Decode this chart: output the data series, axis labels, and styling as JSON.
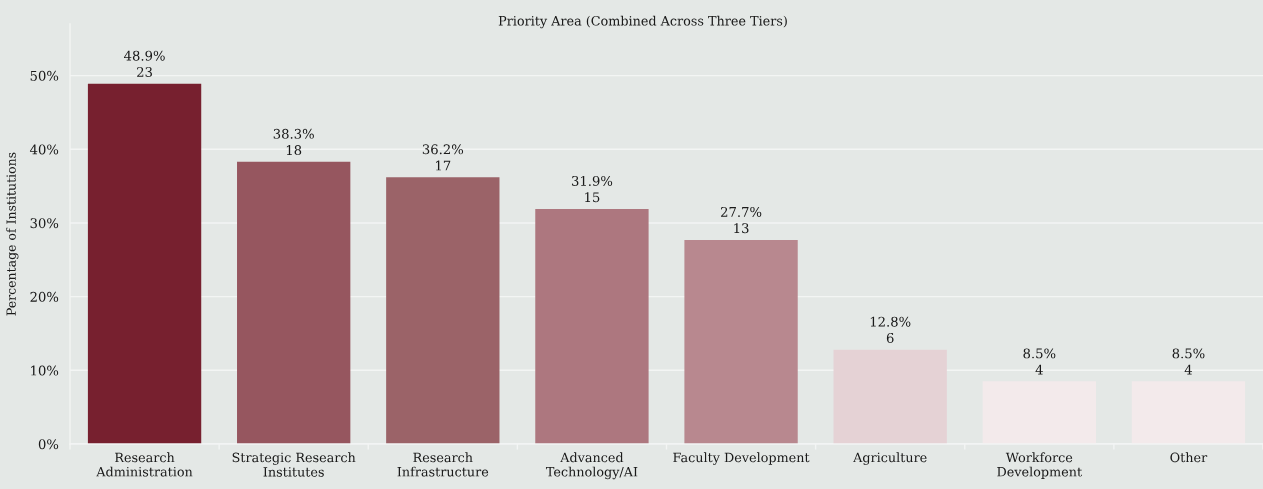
{
  "chart_data": {
    "type": "bar",
    "title": "Priority Area (Combined Across Three Tiers)",
    "ylabel": "Percentage of Institutions",
    "categories": [
      "Research\nAdministration",
      "Strategic Research\nInstitutes",
      "Research\nInfrastructure",
      "Advanced\nTechnology/AI",
      "Faculty Development",
      "Agriculture",
      "Workforce\nDevelopment",
      "Other"
    ],
    "values": [
      48.9,
      38.3,
      36.2,
      31.9,
      27.7,
      12.8,
      8.5,
      8.5
    ],
    "colors": [
      "#77202f",
      "#96565f",
      "#9b6368",
      "#ad777f",
      "#b8888f",
      "#e5d2d5",
      "#f3eaeb",
      "#f3eaeb"
    ],
    "value_labels": [
      "48.9%\n23",
      "38.3%\n18",
      "36.2%\n17",
      "31.9%\n15",
      "27.7%\n13",
      "12.8%\n6",
      "8.5%\n4",
      "8.5%\n4"
    ],
    "ylim": [
      0,
      57
    ],
    "yticks": [
      {
        "value": 0,
        "label": "0%"
      },
      {
        "value": 10,
        "label": "10%"
      },
      {
        "value": 20,
        "label": "20%"
      },
      {
        "value": 30,
        "label": "30%"
      },
      {
        "value": 40,
        "label": "40%"
      },
      {
        "value": 50,
        "label": "50%"
      }
    ],
    "grid": "y"
  }
}
